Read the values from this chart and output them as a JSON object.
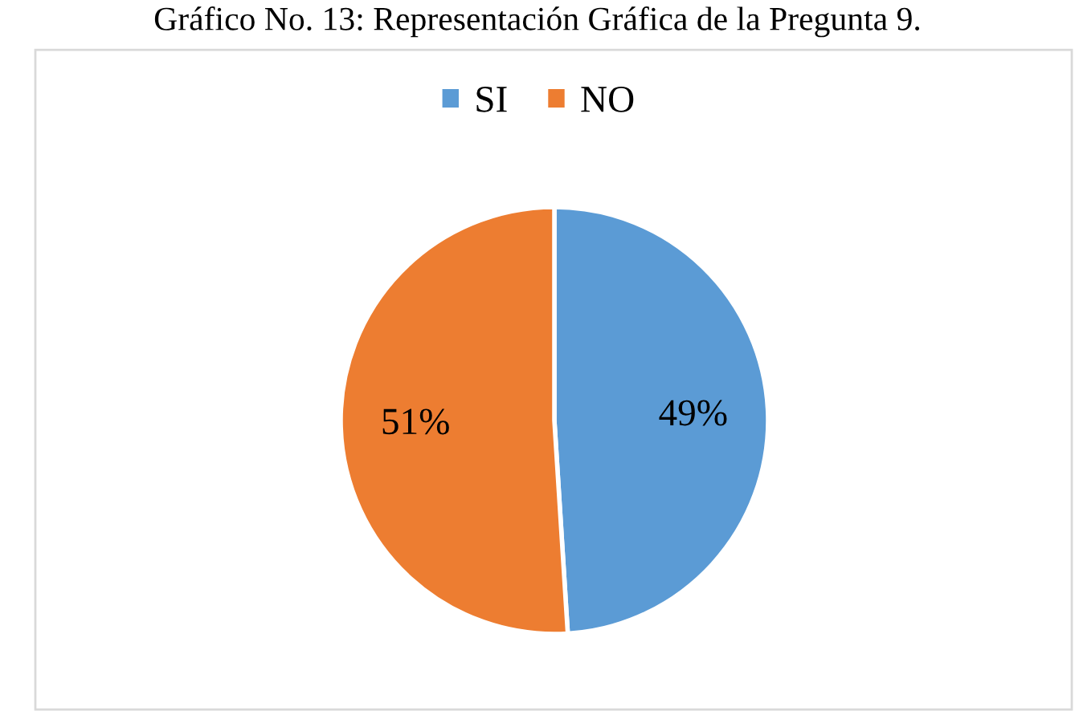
{
  "chart_data": {
    "type": "pie",
    "title": "Gráfico No. 13: Representación Gráfica de la Pregunta 9.",
    "categories": [
      "SI",
      "NO"
    ],
    "values": [
      49,
      51
    ],
    "colors": [
      "#5b9bd5",
      "#ed7d31"
    ],
    "value_labels": [
      "49%",
      "51%"
    ],
    "legend": "top"
  }
}
